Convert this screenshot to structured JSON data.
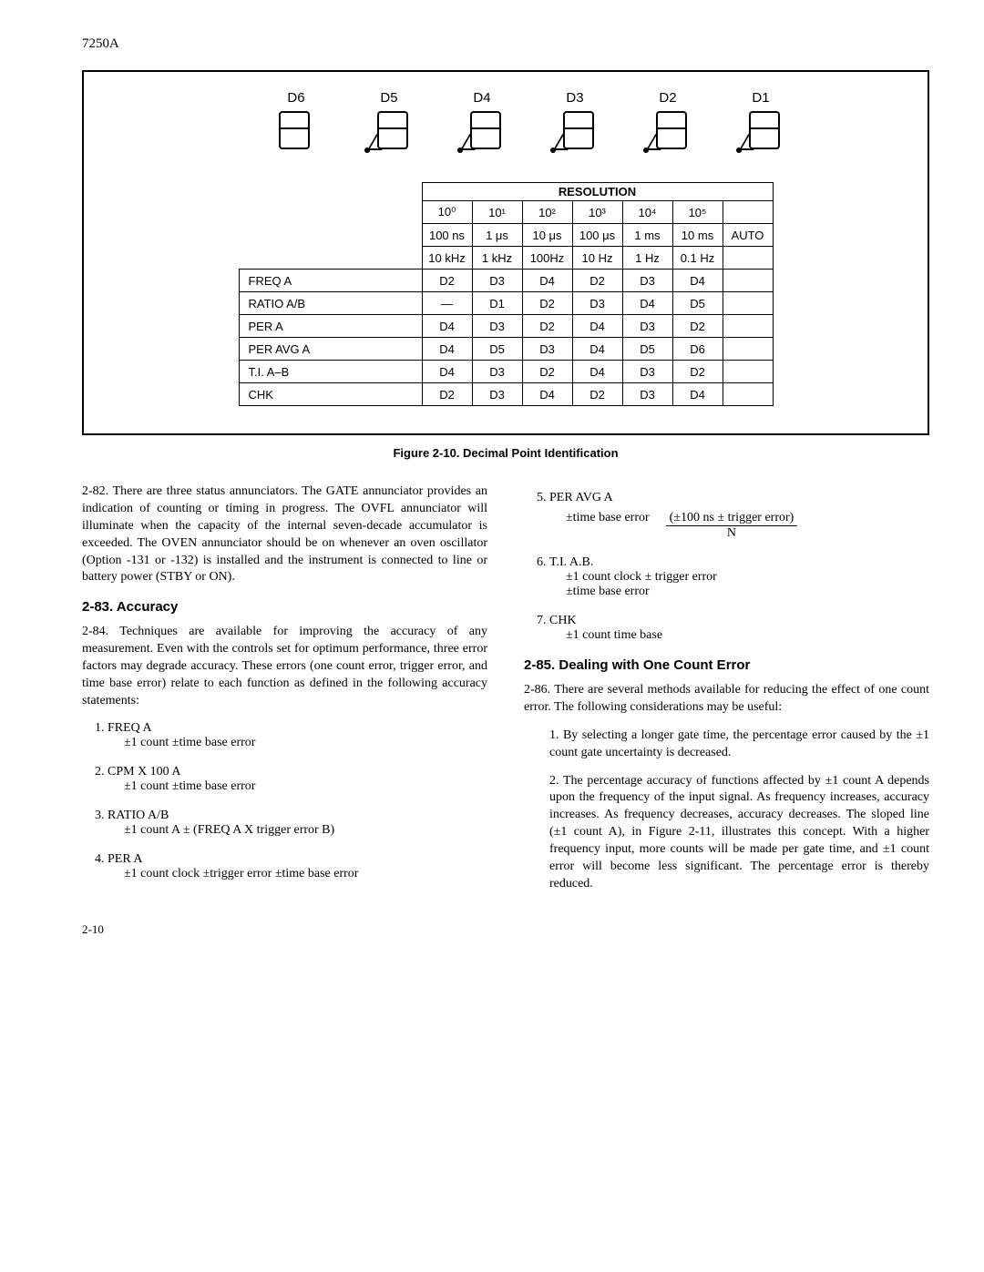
{
  "model": "7250A",
  "digits": [
    "D6",
    "D5",
    "D4",
    "D3",
    "D2",
    "D1"
  ],
  "resolution_header": "RESOLUTION",
  "exp_headers": [
    "10⁰",
    "10¹",
    "10²",
    "10³",
    "10⁴",
    "10⁵",
    ""
  ],
  "time_row": [
    "100 ns",
    "1 μs",
    "10 μs",
    "100 μs",
    "1 ms",
    "10 ms",
    "AUTO"
  ],
  "freq_row": [
    "10 kHz",
    "1 kHz",
    "100Hz",
    "10 Hz",
    "1 Hz",
    "0.1 Hz",
    ""
  ],
  "body_rows": [
    {
      "label": "FREQ A",
      "cells": [
        "D2",
        "D3",
        "D4",
        "D2",
        "D3",
        "D4",
        ""
      ]
    },
    {
      "label": "RATIO A/B",
      "cells": [
        "—",
        "D1",
        "D2",
        "D3",
        "D4",
        "D5",
        ""
      ]
    },
    {
      "label": "PER A",
      "cells": [
        "D4",
        "D3",
        "D2",
        "D4",
        "D3",
        "D2",
        ""
      ]
    },
    {
      "label": "PER AVG A",
      "cells": [
        "D4",
        "D5",
        "D3",
        "D4",
        "D5",
        "D6",
        ""
      ]
    },
    {
      "label": "T.I. A–B",
      "cells": [
        "D4",
        "D3",
        "D2",
        "D4",
        "D3",
        "D2",
        ""
      ]
    },
    {
      "label": "CHK",
      "cells": [
        "D2",
        "D3",
        "D4",
        "D2",
        "D3",
        "D4",
        ""
      ]
    }
  ],
  "caption": "Figure 2-10. Decimal Point Identification",
  "p282": "2-82.   There are three status annunciators. The GATE annunciator provides an indication of counting or timing in progress. The OVFL annunciator will illuminate when the capacity of the internal seven-decade accumulator is exceeded. The OVEN annunciator should be on whenever an oven oscillator (Option -131 or -132) is installed and the instrument is connected to line or battery power (STBY or ON).",
  "h283": "2-83.   Accuracy",
  "p284": "2-84.   Techniques are available for improving the accuracy of any measurement. Even with the controls set for optimum performance, three error factors may degrade accuracy. These errors (one count error, trigger error, and time base error) relate to each function as defined in the following accuracy statements:",
  "acc": [
    {
      "t": "FREQ A",
      "s": "±1 count ±time base error"
    },
    {
      "t": "CPM X 100 A",
      "s": "±1 count ±time base error"
    },
    {
      "t": "RATIO A/B",
      "s": "±1 count A ± (FREQ A X trigger error B)"
    },
    {
      "t": "PER A",
      "s": "±1 count clock ±trigger error ±time base error"
    }
  ],
  "item5_title": "PER AVG A",
  "item5_l": "±time base error",
  "item5_num": "(±100 ns ± trigger error)",
  "item5_den": "N",
  "item6_title": "T.I. A.B.",
  "item6_a": "±1 count clock ± trigger error",
  "item6_b": "±time base error",
  "item7_title": "CHK",
  "item7_a": "±1 count time base",
  "h285": "2-85.   Dealing with One Count Error",
  "p286": "2-86.   There are several methods available for reducing the effect of one count error. The following considerations may be useful:",
  "m1": "1.   By selecting a longer gate time, the percentage error caused by the ±1 count gate uncertainty is decreased.",
  "m2": "2.   The percentage accuracy of functions affected by ±1 count A depends upon the frequency of the input signal. As frequency increases, accuracy increases. As frequency decreases, accuracy decreases. The sloped line (±1 count A), in Figure 2-11, illustrates this concept. With a higher frequency input, more counts will be made per gate time, and ±1 count error will become less significant. The percentage error is thereby reduced.",
  "page": "2-10"
}
